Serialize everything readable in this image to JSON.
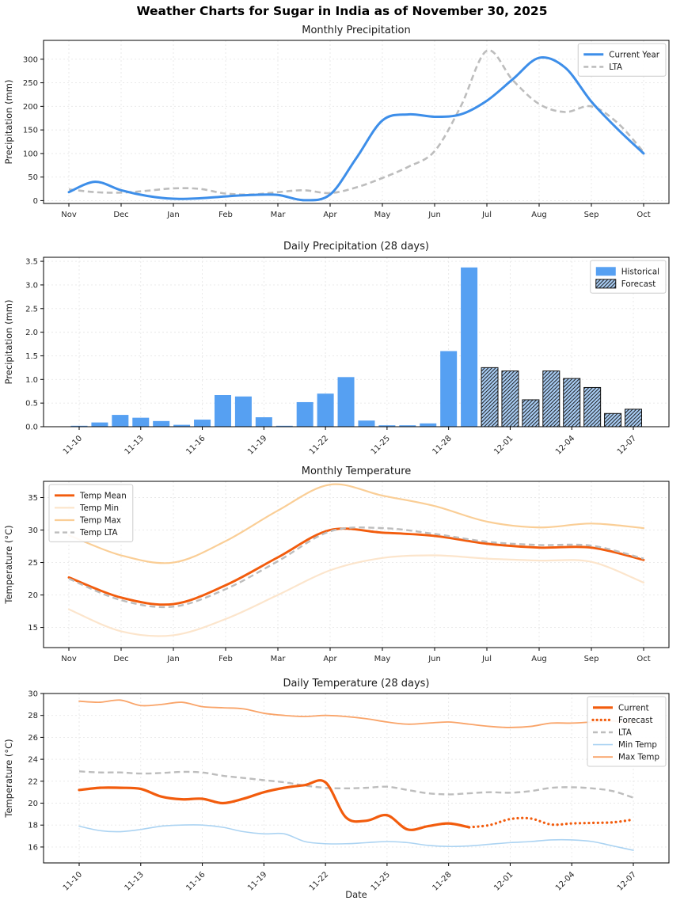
{
  "page": {
    "title": "Weather Charts for Sugar in India as of November 30, 2025"
  },
  "chart_data": "see charts[] below",
  "charts": [
    {
      "id": "monthly-precipitation",
      "title": "Monthly Precipitation",
      "type": "line",
      "ylabel": "Precipitation (mm)",
      "x_labels": [
        "Nov",
        "Dec",
        "Jan",
        "Feb",
        "Mar",
        "Apr",
        "May",
        "Jun",
        "Jul",
        "Aug",
        "Sep",
        "Oct"
      ],
      "ytick_vals": [
        0,
        50,
        100,
        150,
        200,
        250,
        300
      ],
      "ytick_labels": [
        "0",
        "50",
        "100",
        "150",
        "200",
        "250",
        "300"
      ],
      "ylim": [
        -6,
        340
      ],
      "legend_loc": "top-right",
      "series": [
        {
          "name": "Current Year",
          "color": "#3d8ee9",
          "width": 3,
          "dash": "solid",
          "swatch": "line",
          "z": 2,
          "x": [
            0,
            0.5,
            1,
            1.5,
            2,
            2.5,
            3,
            3.5,
            4,
            4.5,
            5,
            5.5,
            6,
            6.5,
            7,
            7.5,
            8,
            8.5,
            9,
            9.5,
            10,
            10.5,
            11
          ],
          "values": [
            18,
            40,
            22,
            10,
            4,
            5,
            9,
            12,
            12,
            1,
            13,
            90,
            170,
            183,
            178,
            183,
            212,
            258,
            303,
            282,
            210,
            152,
            100
          ]
        },
        {
          "name": "LTA",
          "color": "#bdbdbd",
          "width": 2.6,
          "dash": "dashed",
          "swatch": "line",
          "z": 1,
          "x": [
            0,
            0.5,
            1,
            1.5,
            2,
            2.5,
            3,
            3.5,
            4,
            4.5,
            5,
            5.5,
            6,
            6.5,
            7,
            7.5,
            8,
            8.5,
            9,
            9.5,
            10,
            10.5,
            11
          ],
          "values": [
            24,
            18,
            17,
            21,
            26,
            25,
            15,
            13,
            18,
            22,
            16,
            28,
            48,
            72,
            105,
            200,
            318,
            255,
            205,
            188,
            200,
            165,
            103
          ]
        }
      ]
    },
    {
      "id": "daily-precipitation",
      "title": "Daily Precipitation (28 days)",
      "type": "bar",
      "ylabel": "Precipitation (mm)",
      "dates": [
        "11-10",
        "11-11",
        "11-12",
        "11-13",
        "11-14",
        "11-15",
        "11-16",
        "11-17",
        "11-18",
        "11-19",
        "11-20",
        "11-21",
        "11-22",
        "11-23",
        "11-24",
        "11-25",
        "11-26",
        "11-27",
        "11-28",
        "11-29",
        "11-30",
        "12-01",
        "12-02",
        "12-03",
        "12-04",
        "12-05",
        "12-06",
        "12-07"
      ],
      "x_tick_labels": [
        "11-10",
        "11-13",
        "11-16",
        "11-19",
        "11-22",
        "11-25",
        "11-28",
        "12-01",
        "12-04",
        "12-07"
      ],
      "ytick_vals": [
        0,
        0.5,
        1,
        1.5,
        2,
        2.5,
        3,
        3.5
      ],
      "ytick_labels": [
        "0.0",
        "0.5",
        "1.0",
        "1.5",
        "2.0",
        "2.5",
        "3.0",
        "3.5"
      ],
      "ylim": [
        0,
        3.585
      ],
      "legend_loc": "top-right",
      "series": [
        {
          "name": "Historical",
          "color": "#56a0f2",
          "swatch": "patch",
          "hatch": false,
          "xstart": 0,
          "z": 1,
          "values": [
            0.02,
            0.09,
            0.25,
            0.19,
            0.12,
            0.04,
            0.15,
            0.67,
            0.64,
            0.2,
            0.02,
            0.52,
            0.7,
            1.05,
            0.13,
            0.03,
            0.03,
            0.07,
            1.6,
            3.37
          ]
        },
        {
          "name": "Forecast",
          "color": "#a9cdf4",
          "swatch": "patch",
          "hatch": true,
          "xstart": 20,
          "z": 1,
          "values": [
            1.25,
            1.18,
            0.57,
            1.18,
            1.02,
            0.83,
            0.28,
            0.37
          ]
        }
      ]
    },
    {
      "id": "monthly-temperature",
      "title": "Monthly Temperature",
      "type": "line",
      "ylabel": "Temperature (°C)",
      "x_labels": [
        "Nov",
        "Dec",
        "Jan",
        "Feb",
        "Mar",
        "Apr",
        "May",
        "Jun",
        "Jul",
        "Aug",
        "Sep",
        "Oct"
      ],
      "ytick_vals": [
        15,
        20,
        25,
        30,
        35
      ],
      "ytick_labels": [
        "15",
        "20",
        "25",
        "30",
        "35"
      ],
      "ylim": [
        11.9,
        37.5
      ],
      "legend_loc": "top-left",
      "series": [
        {
          "name": "Temp Mean",
          "color": "#f25c0d",
          "width": 2.9,
          "dash": "solid",
          "swatch": "line",
          "z": 3,
          "x": [
            0,
            1,
            2,
            3,
            4,
            5,
            6,
            7,
            8,
            9,
            10,
            11
          ],
          "values": [
            22.7,
            19.6,
            18.6,
            21.5,
            25.8,
            30.0,
            29.6,
            29.1,
            27.9,
            27.3,
            27.3,
            25.4
          ]
        },
        {
          "name": "Temp Min",
          "color": "#fce5cc",
          "width": 2.2,
          "dash": "solid",
          "swatch": "line",
          "z": 1,
          "x": [
            0,
            1,
            2,
            3,
            4,
            5,
            6,
            7,
            8,
            9,
            10,
            11
          ],
          "values": [
            17.8,
            14.4,
            13.8,
            16.3,
            20.0,
            23.8,
            25.7,
            26.1,
            25.6,
            25.3,
            25.1,
            21.9
          ]
        },
        {
          "name": "Temp Max",
          "color": "#face96",
          "width": 2.2,
          "dash": "solid",
          "swatch": "line",
          "z": 2,
          "x": [
            0,
            1,
            2,
            3,
            4,
            5,
            6,
            7,
            8,
            9,
            10,
            11
          ],
          "values": [
            29.2,
            26.1,
            25.0,
            28.3,
            33.0,
            37.0,
            35.3,
            33.7,
            31.3,
            30.4,
            31.0,
            30.3
          ]
        },
        {
          "name": "Temp LTA",
          "color": "#bdbdbd",
          "width": 2.4,
          "dash": "dashed",
          "swatch": "line",
          "z": 4,
          "x": [
            0,
            1,
            2,
            3,
            4,
            5,
            6,
            7,
            8,
            9,
            10,
            11
          ],
          "values": [
            22.5,
            19.2,
            18.2,
            20.9,
            25.2,
            29.8,
            30.3,
            29.4,
            28.2,
            27.7,
            27.6,
            25.6
          ]
        }
      ]
    },
    {
      "id": "daily-temperature",
      "title": "Daily Temperature (28 days)",
      "type": "line",
      "ylabel": "Temperature (°C)",
      "xlabel": "Date",
      "dates": [
        "11-10",
        "11-11",
        "11-12",
        "11-13",
        "11-14",
        "11-15",
        "11-16",
        "11-17",
        "11-18",
        "11-19",
        "11-20",
        "11-21",
        "11-22",
        "11-23",
        "11-24",
        "11-25",
        "11-26",
        "11-27",
        "11-28",
        "11-29",
        "11-30",
        "12-01",
        "12-02",
        "12-03",
        "12-04",
        "12-05",
        "12-06",
        "12-07"
      ],
      "x_tick_labels": [
        "11-10",
        "11-13",
        "11-16",
        "11-19",
        "11-22",
        "11-25",
        "11-28",
        "12-01",
        "12-04",
        "12-07"
      ],
      "ytick_vals": [
        16,
        18,
        20,
        22,
        24,
        26,
        28,
        30
      ],
      "ytick_labels": [
        "16",
        "18",
        "20",
        "22",
        "24",
        "26",
        "28",
        "30"
      ],
      "ylim": [
        14.55,
        30
      ],
      "legend_loc": "top-right",
      "series": [
        {
          "name": "Current",
          "color": "#f25c0d",
          "width": 3.2,
          "dash": "solid",
          "swatch": "line",
          "xstart": 0,
          "z": 4,
          "values": [
            21.2,
            21.4,
            21.4,
            21.3,
            20.6,
            20.35,
            20.4,
            20.0,
            20.4,
            21.0,
            21.4,
            21.65,
            21.9,
            18.7,
            18.4,
            18.9,
            17.6,
            17.9,
            18.15,
            17.8
          ]
        },
        {
          "name": "Forecast",
          "color": "#f25c0d",
          "width": 3.2,
          "dash": "dotted",
          "swatch": "line",
          "xstart": 20,
          "connect": true,
          "z": 5,
          "values": [
            18.0,
            18.55,
            18.6,
            18.05,
            18.15,
            18.2,
            18.25,
            18.5
          ]
        },
        {
          "name": "LTA",
          "color": "#bdbdbd",
          "width": 2.4,
          "dash": "dashed",
          "swatch": "line",
          "xstart": 0,
          "z": 3,
          "values": [
            22.9,
            22.8,
            22.8,
            22.7,
            22.75,
            22.85,
            22.8,
            22.5,
            22.3,
            22.1,
            21.9,
            21.6,
            21.4,
            21.35,
            21.4,
            21.5,
            21.2,
            20.9,
            20.8,
            20.9,
            21.0,
            20.95,
            21.1,
            21.4,
            21.45,
            21.35,
            21.1,
            20.5
          ]
        },
        {
          "name": "Min Temp",
          "color": "#abd3f2",
          "width": 1.6,
          "dash": "solid",
          "swatch": "line",
          "xstart": 0,
          "z": 1,
          "values": [
            17.9,
            17.5,
            17.4,
            17.6,
            17.9,
            18.0,
            18.0,
            17.8,
            17.4,
            17.2,
            17.2,
            16.5,
            16.3,
            16.3,
            16.4,
            16.5,
            16.4,
            16.15,
            16.05,
            16.1,
            16.25,
            16.4,
            16.5,
            16.65,
            16.65,
            16.5,
            16.1,
            15.7
          ]
        },
        {
          "name": "Max Temp",
          "color": "#f9a469",
          "width": 1.8,
          "dash": "solid",
          "swatch": "line",
          "xstart": 0,
          "z": 2,
          "values": [
            29.3,
            29.2,
            29.4,
            28.9,
            29.0,
            29.2,
            28.8,
            28.7,
            28.6,
            28.2,
            28.0,
            27.9,
            28.0,
            27.9,
            27.7,
            27.4,
            27.2,
            27.3,
            27.4,
            27.2,
            27.0,
            26.9,
            27.0,
            27.3,
            27.3,
            27.4,
            27.5,
            27.3
          ]
        }
      ]
    }
  ]
}
